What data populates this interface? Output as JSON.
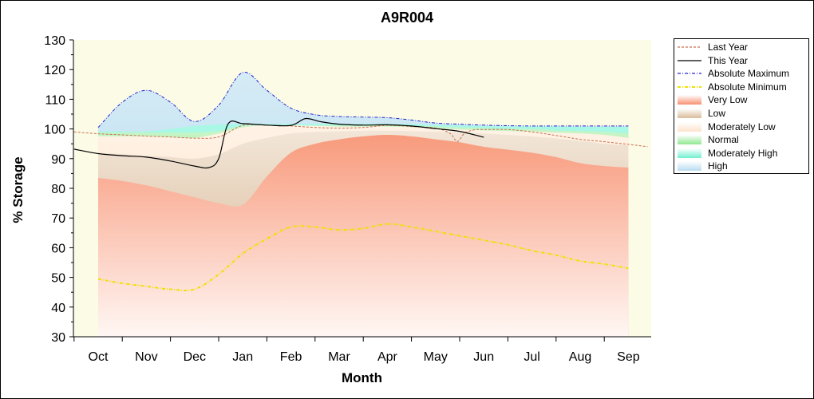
{
  "chart_data": {
    "type": "area",
    "title": "A9R004",
    "xlabel": "Month",
    "ylabel": "% Storage",
    "ylim": [
      30,
      130
    ],
    "yticks": [
      30,
      40,
      50,
      60,
      70,
      80,
      90,
      100,
      110,
      120,
      130
    ],
    "categories": [
      "Oct",
      "Nov",
      "Dec",
      "Jan",
      "Feb",
      "Mar",
      "Apr",
      "May",
      "Jun",
      "Jul",
      "Aug",
      "Sep"
    ],
    "legend_position": "right",
    "bands": {
      "x": [
        0,
        0.5,
        1,
        1.5,
        2,
        2.5,
        3,
        3.5,
        4,
        4.5,
        5,
        5.5,
        6,
        6.5,
        7,
        7.5,
        8,
        8.5,
        9,
        9.5,
        10,
        10.5,
        11
      ],
      "very_low": [
        83.5,
        82.5,
        81,
        79,
        77,
        75,
        74.5,
        84,
        92,
        95,
        96.5,
        97.5,
        98,
        97.5,
        96.5,
        95.5,
        94,
        93,
        92,
        90.5,
        88.5,
        87.5,
        87
      ],
      "low": [
        92,
        91.5,
        91,
        90.5,
        90,
        91.5,
        95,
        97,
        98.5,
        99,
        99.2,
        99.4,
        99.4,
        99.3,
        99.1,
        98.9,
        98.5,
        98,
        97.5,
        96.8,
        96,
        95,
        94.5
      ],
      "moderately_low": [
        97.5,
        97.5,
        97.5,
        97.2,
        97,
        98.5,
        100.5,
        101.3,
        101.2,
        101,
        100.8,
        100.8,
        100.8,
        100.6,
        100.3,
        99.8,
        99.5,
        99.3,
        99.1,
        98.8,
        98.5,
        98,
        97
      ],
      "normal": [
        98.8,
        98.8,
        98.8,
        98.8,
        98.8,
        99.3,
        101.1,
        101.2,
        101.2,
        101.2,
        101.2,
        101.2,
        101.2,
        101,
        100.8,
        100.5,
        100.3,
        100.1,
        100,
        99.5,
        99.3,
        99,
        98.5
      ],
      "moderately_high": [
        99.2,
        99.2,
        99.2,
        100,
        101,
        101.5,
        101.7,
        101.7,
        101.7,
        101.7,
        101.7,
        101.7,
        101.7,
        101.6,
        101.4,
        101.2,
        101,
        100.9,
        100.8,
        100.8,
        100.7,
        100.7,
        100.7
      ],
      "high": [
        100.5,
        109,
        113,
        109,
        102.5,
        108,
        119,
        113,
        107,
        104.8,
        104.2,
        104,
        103.8,
        103,
        102,
        101.6,
        101.3,
        101.1,
        101,
        101,
        101,
        101,
        101
      ]
    },
    "series": [
      {
        "name": "Last Year",
        "x": [
          -0.5,
          0,
          0.5,
          1,
          1.5,
          2,
          2.5,
          3,
          3.5,
          4,
          4.5,
          5,
          5.5,
          6,
          6.5,
          7,
          7.3,
          7.45,
          7.6,
          7.8,
          8,
          8.5,
          9,
          9.5,
          10,
          10.5,
          11,
          11.4
        ],
        "values": [
          99,
          98.4,
          98,
          97.6,
          97.3,
          96.9,
          97.3,
          101.2,
          101.3,
          101,
          100.5,
          100.3,
          100.5,
          101.2,
          100.8,
          100.3,
          98.5,
          95.8,
          98.5,
          99.7,
          99.8,
          99.8,
          99,
          97.8,
          96.5,
          95.7,
          94.8,
          94
        ]
      },
      {
        "name": "This Year",
        "x": [
          -0.5,
          0,
          0.5,
          1,
          1.5,
          2,
          2.3,
          2.5,
          2.7,
          3,
          3.5,
          4,
          4.3,
          4.6,
          5,
          5.5,
          6,
          6.5,
          7,
          7.5,
          8
        ],
        "values": [
          93.2,
          91.7,
          91,
          90.5,
          89.2,
          87.5,
          87,
          90,
          101.8,
          101.8,
          101.3,
          101.2,
          103.5,
          102.5,
          101.6,
          101.3,
          101.4,
          101,
          100.1,
          99.2,
          97.2
        ]
      },
      {
        "name": "Absolute Maximum",
        "x": [
          0,
          0.5,
          1,
          1.5,
          2,
          2.5,
          3,
          3.5,
          4,
          4.5,
          5,
          5.5,
          6,
          6.5,
          7,
          7.5,
          8,
          8.5,
          9,
          9.5,
          10,
          10.5,
          11
        ],
        "values": [
          100.5,
          109,
          113,
          109,
          102.5,
          108,
          119,
          113,
          107,
          104.8,
          104.2,
          104,
          103.8,
          103,
          102,
          101.6,
          101.3,
          101.1,
          101,
          101,
          101,
          101,
          101
        ]
      },
      {
        "name": "Absolute Minimum",
        "x": [
          0,
          0.5,
          1,
          1.5,
          2,
          2.5,
          3,
          3.5,
          4,
          4.5,
          5,
          5.5,
          6,
          6.5,
          7,
          7.5,
          8,
          8.5,
          9,
          9.5,
          10,
          10.5,
          11
        ],
        "values": [
          49.5,
          48,
          47,
          46,
          46,
          51,
          58,
          63,
          67,
          67,
          66,
          66.5,
          68,
          67,
          65.5,
          64,
          62.5,
          61,
          59,
          57.5,
          55.5,
          54.5,
          53
        ]
      }
    ],
    "legend": [
      {
        "label": "Last Year",
        "kind": "line",
        "color": "#c87050",
        "dash": "3,2"
      },
      {
        "label": "This Year",
        "kind": "line",
        "color": "#000000",
        "dash": ""
      },
      {
        "label": "Absolute Maximum",
        "kind": "line",
        "color": "#2020d0",
        "dash": "4,2,1,2"
      },
      {
        "label": "Absolute Minimum",
        "kind": "line",
        "color": "#f0e000",
        "dash": "4,2,1,2"
      },
      {
        "label": "Very Low",
        "kind": "fill",
        "color": "#f79070"
      },
      {
        "label": "Low",
        "kind": "fill",
        "color": "#d9bc9b"
      },
      {
        "label": "Moderately Low",
        "kind": "fill",
        "color": "#fde3cc"
      },
      {
        "label": "Normal",
        "kind": "fill",
        "color": "#90e890"
      },
      {
        "label": "Moderately High",
        "kind": "fill",
        "color": "#70f0d0"
      },
      {
        "label": "High",
        "kind": "fill",
        "color": "#b8dcf0"
      }
    ],
    "colors": {
      "plot_background": "#fbfbe6",
      "very_low": "#f79070",
      "low": "#d9bc9b",
      "moderately_low": "#fde3cc",
      "normal": "#90e890",
      "moderately_high": "#70f0d0",
      "high": "#b8dcf0",
      "last_year": "#c87050",
      "this_year": "#000000",
      "absolute_maximum": "#2020d0",
      "absolute_minimum": "#f0e000"
    }
  }
}
